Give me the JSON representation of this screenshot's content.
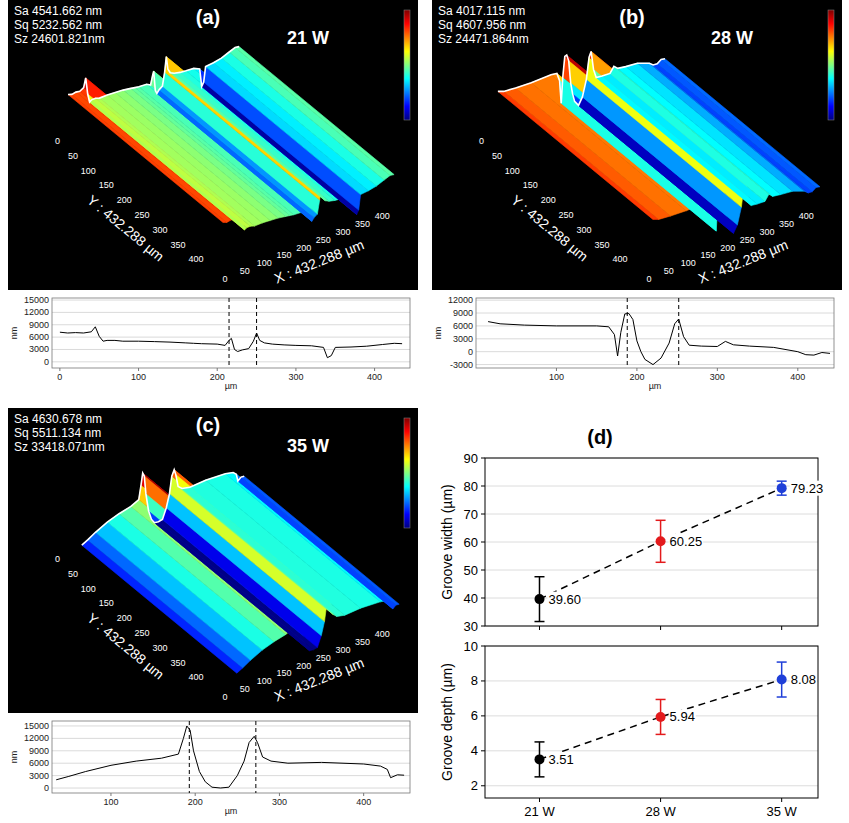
{
  "surfaces": [
    {
      "letter": "(a)",
      "power": "21 W",
      "stats": [
        "Sa 4541.662 nm",
        "Sq 5232.562 nm",
        "Sz 24601.821nm"
      ],
      "x_title": "X : 432.288 µm",
      "y_title": "Y : 432.288 µm",
      "extent": 432.288,
      "ticks": [
        0,
        50,
        100,
        150,
        200,
        250,
        300,
        350,
        400
      ]
    },
    {
      "letter": "(b)",
      "power": "28 W",
      "stats": [
        "Sa 4017.115 nm",
        "Sq 4607.956 nm",
        "Sz 24471.864nm"
      ],
      "x_title": "X : 432.288 µm",
      "y_title": "Y : 432.288 µm",
      "extent": 432.288,
      "ticks": [
        0,
        50,
        100,
        150,
        200,
        250,
        300,
        350,
        400
      ]
    },
    {
      "letter": "(c)",
      "power": "35 W",
      "stats": [
        "Sa 4630.678 nm",
        "Sq 5511.134 nm",
        "Sz 33418.071nm"
      ],
      "x_title": "X : 432.288 µm",
      "y_title": "Y : 432.288 µm",
      "extent": 432.288,
      "ticks": [
        0,
        50,
        100,
        150,
        200,
        250,
        300,
        350,
        400
      ]
    }
  ],
  "chart_data": [
    {
      "type": "line",
      "xlabel": "µm",
      "ylabel": "nm",
      "color": "#000000",
      "grid": true,
      "x": [
        0,
        10,
        20,
        30,
        40,
        45,
        50,
        55,
        60,
        70,
        80,
        100,
        120,
        140,
        160,
        170,
        180,
        200,
        210,
        215,
        218,
        222,
        226,
        232,
        240,
        246,
        250,
        254,
        260,
        270,
        285,
        300,
        320,
        335,
        340,
        345,
        350,
        370,
        390,
        410,
        425,
        435
      ],
      "values": [
        7200,
        7000,
        7100,
        7000,
        7300,
        8500,
        6200,
        5000,
        5200,
        5200,
        5000,
        5000,
        4900,
        4800,
        4600,
        4500,
        4400,
        4300,
        4000,
        5200,
        5700,
        3000,
        2500,
        2900,
        3200,
        5000,
        7000,
        5200,
        4600,
        4300,
        4100,
        4000,
        3900,
        3500,
        1000,
        1500,
        3500,
        3600,
        3800,
        4200,
        4500,
        4400
      ],
      "xlim": [
        -10,
        445
      ],
      "xticks": [
        0,
        100,
        200,
        300,
        400
      ],
      "ylim": [
        -1500,
        15500
      ],
      "yticks": [
        0,
        3000,
        6000,
        9000,
        12000,
        15000
      ],
      "dashed_x": [
        215,
        250
      ]
    },
    {
      "type": "line",
      "xlabel": "µm",
      "ylabel": "nm",
      "color": "#000000",
      "grid": true,
      "x": [
        15,
        30,
        60,
        100,
        150,
        165,
        172,
        176,
        180,
        185,
        190,
        195,
        200,
        205,
        210,
        220,
        230,
        240,
        247,
        252,
        258,
        265,
        280,
        300,
        310,
        320,
        340,
        370,
        400,
        410,
        420,
        430,
        440
      ],
      "values": [
        7000,
        6500,
        6200,
        6000,
        6000,
        5800,
        4000,
        -1000,
        4500,
        8800,
        8900,
        7500,
        2500,
        0,
        -1800,
        -3000,
        -1500,
        2000,
        6500,
        7600,
        3500,
        1500,
        1300,
        1200,
        2400,
        1600,
        1300,
        1000,
        0,
        -700,
        -800,
        -200,
        -400
      ],
      "xlim": [
        0,
        445
      ],
      "xticks": [
        100,
        200,
        300,
        400
      ],
      "ylim": [
        -3800,
        12500
      ],
      "yticks": [
        -3000,
        0,
        3000,
        6000,
        9000,
        12000
      ],
      "dashed_x": [
        188,
        252
      ]
    },
    {
      "type": "line",
      "xlabel": "µm",
      "ylabel": "nm",
      "color": "#000000",
      "grid": true,
      "x": [
        35,
        50,
        70,
        100,
        130,
        160,
        180,
        186,
        190,
        194,
        198,
        205,
        212,
        220,
        230,
        240,
        250,
        258,
        264,
        270,
        274,
        280,
        290,
        310,
        350,
        400,
        420,
        428,
        432,
        440,
        448
      ],
      "values": [
        2000,
        2800,
        4000,
        5500,
        6500,
        7200,
        8200,
        12000,
        15000,
        14000,
        9000,
        4000,
        1500,
        200,
        0,
        200,
        3000,
        6500,
        11000,
        12500,
        11000,
        7500,
        6500,
        6000,
        6200,
        5800,
        5300,
        4500,
        2500,
        3200,
        3100
      ],
      "xlim": [
        30,
        455
      ],
      "xticks": [
        100,
        200,
        300,
        400
      ],
      "ylim": [
        -1200,
        16200
      ],
      "yticks": [
        0,
        3000,
        6000,
        9000,
        12000,
        15000
      ],
      "dashed_x": [
        193,
        272
      ]
    },
    {
      "type": "line",
      "title": "(d)",
      "ylabel": "Groove width (µm)",
      "categories": [
        "21 W",
        "28 W",
        "35 W"
      ],
      "values": [
        39.6,
        60.25,
        79.23
      ],
      "value_labels": [
        "39.60",
        "60.25",
        "79.23"
      ],
      "errors": [
        8,
        7.5,
        2.5
      ],
      "colors": [
        "#000000",
        "#e31a1c",
        "#1f3fd8"
      ],
      "marker": "circle",
      "line_style": "dashed",
      "ylim": [
        30,
        90
      ],
      "yticks": [
        30,
        40,
        50,
        60,
        70,
        80,
        90
      ],
      "grid": true,
      "data_labels": true,
      "tick_labels": "y"
    },
    {
      "type": "line",
      "ylabel": "Groove depth (µm)",
      "categories": [
        "21 W",
        "28 W",
        "35 W"
      ],
      "values": [
        3.51,
        5.94,
        8.08
      ],
      "errors": [
        1,
        1,
        1
      ],
      "colors": [
        "#000000",
        "#e31a1c",
        "#1f3fd8"
      ],
      "marker": "circle",
      "line_style": "dashed",
      "ylim": [
        1.3,
        10
      ],
      "yticks": [
        2,
        4,
        6,
        8,
        10
      ],
      "grid": true,
      "data_labels": true
    }
  ]
}
